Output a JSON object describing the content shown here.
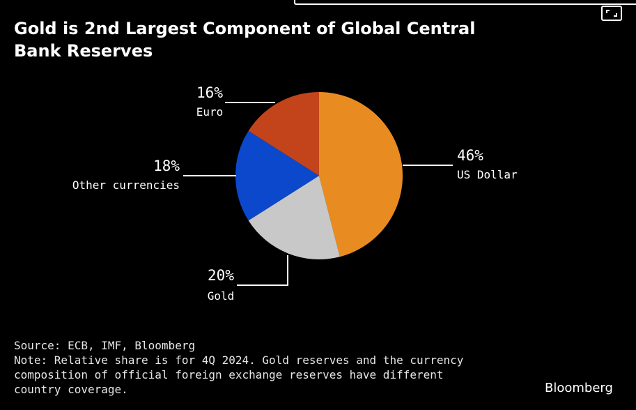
{
  "title_lines": [
    "Gold is 2nd Largest Component of Global Central",
    "Bank Reserves"
  ],
  "chart_data": {
    "type": "pie",
    "title": "Gold is 2nd Largest Component of Global Central Bank Reserves",
    "slices": [
      {
        "label": "US Dollar",
        "value": 46,
        "value_label": "46%",
        "color": "#e88c21"
      },
      {
        "label": "Gold",
        "value": 20,
        "value_label": "20%",
        "color": "#c8c8c8"
      },
      {
        "label": "Other currencies",
        "value": 18,
        "value_label": "18%",
        "color": "#0c48cc"
      },
      {
        "label": "Euro",
        "value": 16,
        "value_label": "16%",
        "color": "#c3441b"
      }
    ],
    "start": "12 o'clock",
    "direction": "clockwise"
  },
  "footer": {
    "source": "Source: ECB, IMF, Bloomberg",
    "note_lines": [
      "Note: Relative share is for 4Q 2024. Gold reserves and the currency",
      "composition of official foreign exchange reserves have different",
      "country coverage."
    ]
  },
  "brand": "Bloomberg",
  "expand_icon": "expand-icon"
}
